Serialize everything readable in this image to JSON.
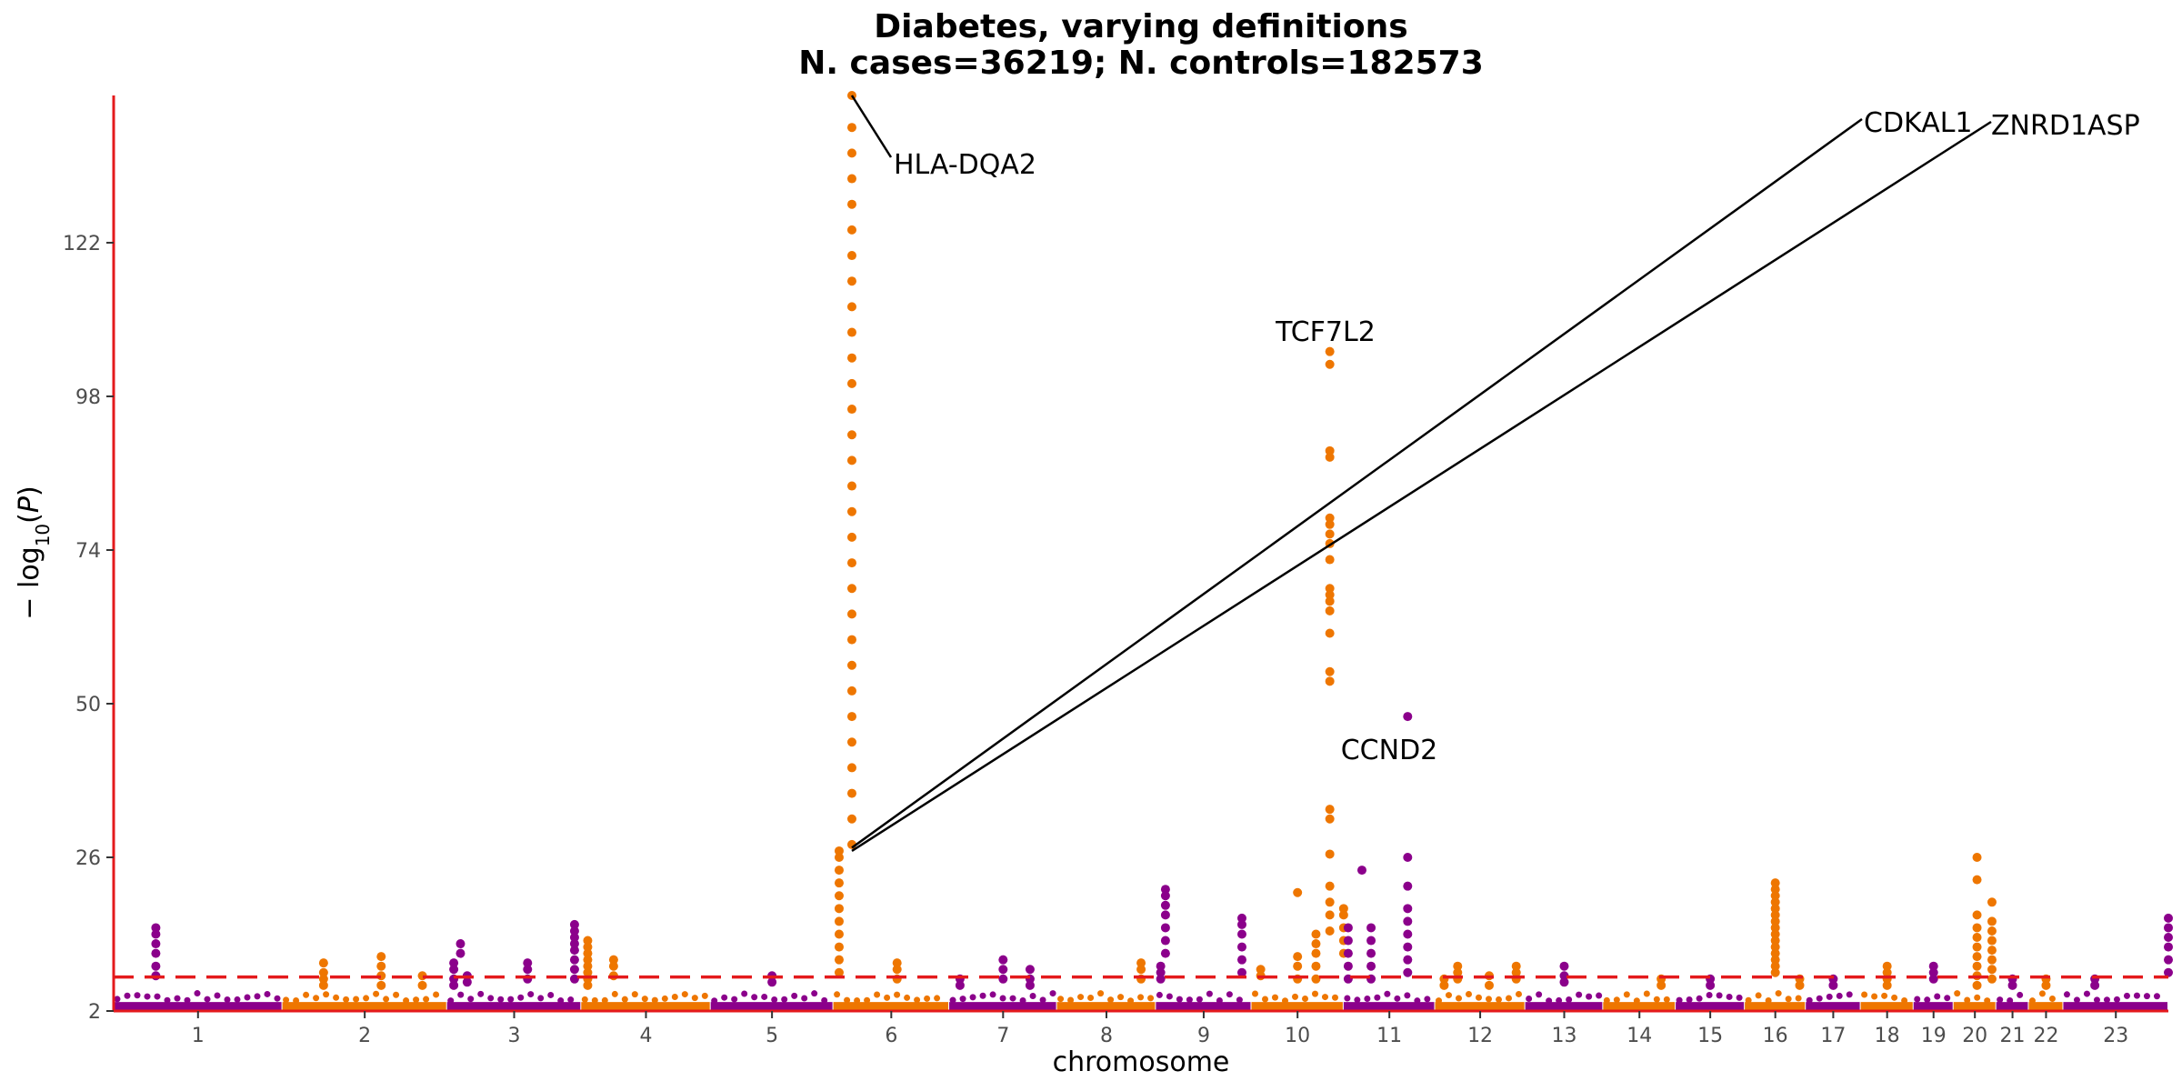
{
  "chart_data": {
    "type": "scatter",
    "subtype": "manhattan",
    "title": "Diabetes, varying definitions",
    "subtitle": "N. cases=36219; N. controls=182573",
    "xlabel": "chromosome",
    "ylabel": "−log10(P)",
    "ylim": [
      2,
      145
    ],
    "yticks": [
      2,
      26,
      50,
      74,
      98,
      122
    ],
    "significance_threshold": 7.3,
    "threshold_color": "#e41a1c",
    "axis_color": "#e41a1c",
    "colors": [
      "#8b008b",
      "#ee7600"
    ],
    "chromosomes": [
      {
        "label": "1",
        "len": 249
      },
      {
        "label": "2",
        "len": 243
      },
      {
        "label": "3",
        "len": 198
      },
      {
        "label": "4",
        "len": 191
      },
      {
        "label": "5",
        "len": 181
      },
      {
        "label": "6",
        "len": 171
      },
      {
        "label": "7",
        "len": 159
      },
      {
        "label": "8",
        "len": 146
      },
      {
        "label": "9",
        "len": 141
      },
      {
        "label": "10",
        "len": 136
      },
      {
        "label": "11",
        "len": 135
      },
      {
        "label": "12",
        "len": 133
      },
      {
        "label": "13",
        "len": 115
      },
      {
        "label": "14",
        "len": 107
      },
      {
        "label": "15",
        "len": 102
      },
      {
        "label": "16",
        "len": 90
      },
      {
        "label": "17",
        "len": 81
      },
      {
        "label": "18",
        "len": 78
      },
      {
        "label": "19",
        "len": 59
      },
      {
        "label": "20",
        "len": 63
      },
      {
        "label": "21",
        "len": 48
      },
      {
        "label": "22",
        "len": 51
      },
      {
        "label": "23",
        "len": 155
      }
    ],
    "peaks": [
      {
        "chr": "1",
        "pos": 0.25,
        "values": [
          7.5,
          9,
          11,
          12.5,
          14,
          15
        ]
      },
      {
        "chr": "2",
        "pos": 0.25,
        "values": [
          6,
          7,
          8,
          9.5
        ]
      },
      {
        "chr": "2",
        "pos": 0.6,
        "values": [
          6,
          7.5,
          9,
          10.5
        ]
      },
      {
        "chr": "2",
        "pos": 0.85,
        "values": [
          6,
          7.5
        ]
      },
      {
        "chr": "3",
        "pos": 0.05,
        "values": [
          6,
          7,
          8.5,
          9.5
        ]
      },
      {
        "chr": "3",
        "pos": 0.1,
        "values": [
          11,
          12.5
        ]
      },
      {
        "chr": "3",
        "pos": 0.15,
        "values": [
          6.5,
          7.5
        ]
      },
      {
        "chr": "3",
        "pos": 0.6,
        "values": [
          7,
          8.5,
          9.5
        ]
      },
      {
        "chr": "3",
        "pos": 0.95,
        "values": [
          7,
          8.5,
          10,
          11.5,
          12.5,
          13.5,
          14.5,
          15.5
        ]
      },
      {
        "chr": "4",
        "pos": 0.05,
        "values": [
          6,
          7,
          8,
          9,
          10,
          11,
          12,
          13
        ]
      },
      {
        "chr": "4",
        "pos": 0.25,
        "values": [
          7.5,
          9,
          10
        ]
      },
      {
        "chr": "5",
        "pos": 0.5,
        "values": [
          6.5,
          7.5
        ]
      },
      {
        "chr": "6",
        "pos": 0.05,
        "values": [
          8,
          10,
          12,
          14,
          16,
          18,
          20,
          22,
          24,
          26,
          27
        ]
      },
      {
        "chr": "6",
        "pos": 0.16,
        "values": [
          28,
          32,
          36,
          40,
          44,
          48,
          52,
          56,
          60,
          64,
          68,
          72,
          76,
          80,
          84,
          88,
          92,
          96,
          100,
          104,
          108,
          112,
          116,
          120,
          124,
          128,
          132,
          136,
          140,
          145
        ]
      },
      {
        "chr": "6",
        "pos": 0.55,
        "values": [
          7,
          8.5,
          9.5
        ]
      },
      {
        "chr": "7",
        "pos": 0.1,
        "values": [
          6,
          7
        ]
      },
      {
        "chr": "7",
        "pos": 0.5,
        "values": [
          7,
          8.5,
          10
        ]
      },
      {
        "chr": "7",
        "pos": 0.75,
        "values": [
          6,
          7,
          8.5
        ]
      },
      {
        "chr": "8",
        "pos": 0.85,
        "values": [
          7,
          8.5,
          9.5
        ]
      },
      {
        "chr": "9",
        "pos": 0.05,
        "values": [
          7,
          8,
          9
        ]
      },
      {
        "chr": "9",
        "pos": 0.1,
        "values": [
          11,
          13,
          15,
          17,
          18.5,
          20,
          21
        ]
      },
      {
        "chr": "9",
        "pos": 0.9,
        "values": [
          8,
          10,
          12,
          14,
          15.5,
          16.5
        ]
      },
      {
        "chr": "10",
        "pos": 0.1,
        "values": [
          7.5,
          8.5
        ]
      },
      {
        "chr": "10",
        "pos": 0.5,
        "values": [
          7,
          9,
          10.5,
          20.5
        ]
      },
      {
        "chr": "10",
        "pos": 0.7,
        "values": [
          7,
          9,
          11,
          12.5,
          14
        ]
      },
      {
        "chr": "10",
        "pos": 0.85,
        "values": [
          14.5,
          17,
          19,
          21.5,
          26.5,
          32,
          33.5,
          53.5,
          55,
          61,
          64.5,
          66,
          67,
          68,
          72.5,
          75,
          76.5,
          78,
          79,
          88.5,
          89.5,
          103,
          105
        ]
      },
      {
        "chr": "10",
        "pos": 1.0,
        "values": [
          11,
          13,
          15,
          17,
          18
        ]
      },
      {
        "chr": "11",
        "pos": 0.05,
        "values": [
          7,
          9,
          11,
          13,
          15
        ]
      },
      {
        "chr": "11",
        "pos": 0.2,
        "values": [
          24
        ]
      },
      {
        "chr": "11",
        "pos": 0.3,
        "values": [
          7,
          9,
          11,
          13,
          15
        ]
      },
      {
        "chr": "11",
        "pos": 0.7,
        "values": [
          8,
          10,
          12,
          14,
          16,
          18,
          21.5,
          26,
          48
        ]
      },
      {
        "chr": "12",
        "pos": 0.1,
        "values": [
          6,
          7
        ]
      },
      {
        "chr": "12",
        "pos": 0.25,
        "values": [
          7,
          8,
          9
        ]
      },
      {
        "chr": "12",
        "pos": 0.6,
        "values": [
          6,
          7.5
        ]
      },
      {
        "chr": "12",
        "pos": 0.9,
        "values": [
          7,
          8,
          9
        ]
      },
      {
        "chr": "13",
        "pos": 0.5,
        "values": [
          6.5,
          7.5,
          9
        ]
      },
      {
        "chr": "14",
        "pos": 0.8,
        "values": [
          6,
          7
        ]
      },
      {
        "chr": "15",
        "pos": 0.5,
        "values": [
          6,
          7
        ]
      },
      {
        "chr": "16",
        "pos": 0.5,
        "values": [
          8,
          9,
          10,
          11,
          12,
          13,
          14,
          15,
          16,
          17,
          18,
          19,
          20,
          21,
          22
        ]
      },
      {
        "chr": "16",
        "pos": 0.9,
        "values": [
          6,
          7
        ]
      },
      {
        "chr": "17",
        "pos": 0.5,
        "values": [
          6,
          7
        ]
      },
      {
        "chr": "18",
        "pos": 0.5,
        "values": [
          6,
          7,
          8,
          9
        ]
      },
      {
        "chr": "19",
        "pos": 0.5,
        "values": [
          7,
          8,
          9
        ]
      },
      {
        "chr": "20",
        "pos": 0.55,
        "values": [
          6,
          7.5,
          9,
          10.5,
          12,
          13.5,
          15,
          17,
          22.5,
          26
        ]
      },
      {
        "chr": "20",
        "pos": 0.9,
        "values": [
          7,
          8.5,
          10,
          11.5,
          13,
          14.5,
          16,
          19
        ]
      },
      {
        "chr": "21",
        "pos": 0.5,
        "values": [
          6,
          7
        ]
      },
      {
        "chr": "22",
        "pos": 0.5,
        "values": [
          6,
          7
        ]
      },
      {
        "chr": "23",
        "pos": 0.3,
        "values": [
          6,
          7
        ]
      },
      {
        "chr": "23",
        "pos": 1.0,
        "values": [
          8,
          10,
          12,
          13.5,
          15,
          16.5
        ]
      }
    ],
    "annotations": [
      {
        "label": "HLA-DQA2",
        "chr": "6",
        "pos": 0.16,
        "y": 145
      },
      {
        "label": "TCF7L2",
        "chr": "10",
        "pos": 0.85,
        "y": 105
      },
      {
        "label": "CCND2",
        "chr": "11",
        "pos": 0.7,
        "y": 48
      },
      {
        "label": "CDKAL1",
        "chr": "6",
        "pos": 0.16,
        "y": 27.5
      },
      {
        "label": "ZNRD1ASP",
        "chr": "6",
        "pos": 0.16,
        "y": 27
      }
    ]
  }
}
